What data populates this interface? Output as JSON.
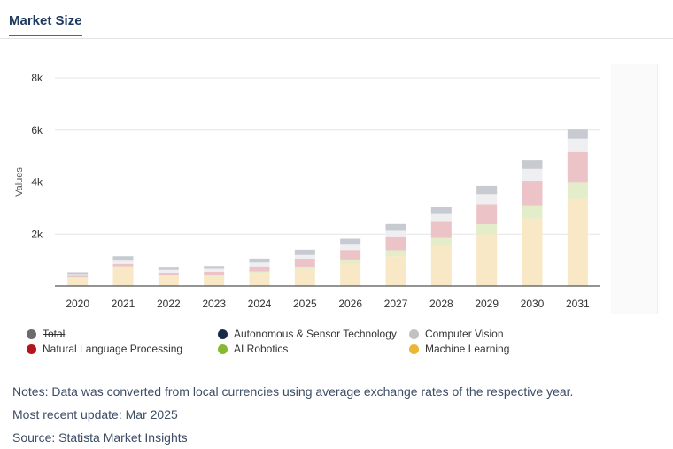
{
  "tab": {
    "label": "Market Size"
  },
  "chart_data": {
    "type": "bar",
    "stacked": true,
    "title": "",
    "xlabel": "",
    "ylabel": "Values",
    "ylim": [
      0,
      8000
    ],
    "yticks": [
      2000,
      4000,
      6000,
      8000
    ],
    "ytick_labels": [
      "2k",
      "4k",
      "6k",
      "8k"
    ],
    "categories": [
      "2020",
      "2021",
      "2022",
      "2023",
      "2024",
      "2025",
      "2026",
      "2027",
      "2028",
      "2029",
      "2030",
      "2031"
    ],
    "series": [
      {
        "name": "Machine Learning",
        "color": "#f8e8c5",
        "values": [
          300,
          700,
          380,
          360,
          500,
          650,
          850,
          1150,
          1550,
          2000,
          2600,
          3350
        ]
      },
      {
        "name": "AI Robotics",
        "color": "#e4edc9",
        "values": [
          40,
          60,
          40,
          45,
          60,
          100,
          140,
          230,
          300,
          380,
          470,
          620
        ]
      },
      {
        "name": "Natural Language Processing",
        "color": "#ecc4c8",
        "values": [
          60,
          100,
          90,
          140,
          200,
          280,
          400,
          500,
          620,
          770,
          980,
          1180
        ]
      },
      {
        "name": "Computer Vision",
        "color": "#efeff1",
        "values": [
          60,
          120,
          110,
          120,
          150,
          170,
          200,
          250,
          300,
          380,
          450,
          510
        ]
      },
      {
        "name": "Autonomous & Sensor Technology",
        "color": "#c7cad1",
        "values": [
          70,
          170,
          90,
          110,
          150,
          200,
          230,
          260,
          260,
          320,
          330,
          360
        ]
      },
      {
        "name": "Total",
        "color": "#6b6b6b",
        "hidden": true,
        "values": [
          530,
          1150,
          710,
          775,
          1060,
          1400,
          1820,
          2390,
          3030,
          3850,
          4830,
          6020
        ]
      }
    ]
  },
  "legend": [
    {
      "label": "Total",
      "color": "#6b6b6b",
      "struck": true
    },
    {
      "label": "Autonomous & Sensor Technology",
      "color": "#1b2a44",
      "struck": false
    },
    {
      "label": "Computer Vision",
      "color": "#c2c2c2",
      "struck": false
    },
    {
      "label": "Natural Language Processing",
      "color": "#b5151f",
      "struck": false
    },
    {
      "label": "AI Robotics",
      "color": "#86b92f",
      "struck": false
    },
    {
      "label": "Machine Learning",
      "color": "#e9b733",
      "struck": false
    }
  ],
  "notes": {
    "note": "Notes: Data was converted from local currencies using average exchange rates of the respective year.",
    "update": "Most recent update: Mar 2025",
    "source": "Source: Statista Market Insights"
  }
}
